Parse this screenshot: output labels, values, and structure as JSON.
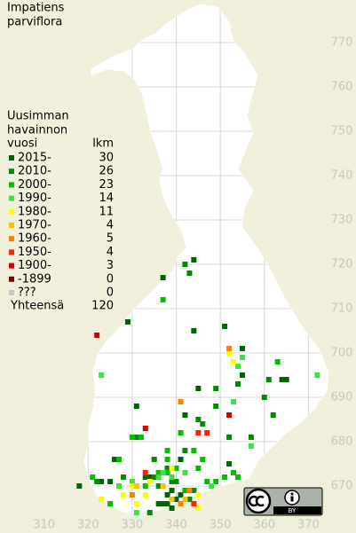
{
  "title": [
    "Impatiens",
    "parviflora"
  ],
  "legend": {
    "header": [
      "Uusimman",
      "havainnon",
      "vuosi"
    ],
    "count_header": "lkm",
    "rows": [
      {
        "label": "2015-",
        "count": 30,
        "color": "#006400",
        "points": [
          [
            337,
            666
          ],
          [
            338,
            666
          ],
          [
            339,
            667
          ],
          [
            340,
            667
          ],
          [
            336,
            666
          ],
          [
            341,
            666
          ],
          [
            325,
            671
          ],
          [
            344,
            721
          ],
          [
            337,
            717
          ],
          [
            329,
            707
          ],
          [
            351,
            706
          ],
          [
            365,
            694
          ],
          [
            364,
            694
          ],
          [
            355,
            701
          ],
          [
            345,
            692
          ],
          [
            344,
            705
          ],
          [
            338,
            668
          ],
          [
            339,
            665
          ],
          [
            334,
            672
          ],
          [
            352,
            675
          ],
          [
            323,
            671
          ],
          [
            342,
            686
          ],
          [
            341,
            676
          ],
          [
            318,
            670
          ],
          [
            326,
            676
          ],
          [
            339,
            669
          ],
          [
            333,
            672
          ],
          [
            341,
            668
          ],
          [
            355,
            695
          ],
          [
            331,
            688
          ]
        ]
      },
      {
        "label": "2010-",
        "count": 26,
        "color": "#008c00",
        "points": [
          [
            322,
            671
          ],
          [
            331,
            681
          ],
          [
            332,
            681
          ],
          [
            335,
            672
          ],
          [
            340,
            671
          ],
          [
            345,
            685
          ],
          [
            342,
            678
          ],
          [
            343,
            667
          ],
          [
            349,
            692
          ],
          [
            352,
            681
          ],
          [
            343,
            718
          ],
          [
            342,
            720
          ],
          [
            360,
            690
          ],
          [
            354,
            693
          ],
          [
            338,
            674
          ],
          [
            339,
            671
          ],
          [
            336,
            670
          ],
          [
            328,
            672
          ],
          [
            344,
            669
          ],
          [
            334,
            664
          ],
          [
            346,
            684
          ],
          [
            349,
            688
          ],
          [
            357,
            681
          ],
          [
            362,
            686
          ],
          [
            361,
            694
          ],
          [
            335,
            676
          ]
        ]
      },
      {
        "label": "2000-",
        "count": 23,
        "color": "#00c000",
        "points": [
          [
            327,
            676
          ],
          [
            332,
            681
          ],
          [
            330,
            681
          ],
          [
            338,
            678
          ],
          [
            338,
            676
          ],
          [
            347,
            671
          ],
          [
            349,
            671
          ],
          [
            336,
            673
          ],
          [
            346,
            676
          ],
          [
            341,
            682
          ],
          [
            353,
            673
          ],
          [
            351,
            672
          ],
          [
            321,
            672
          ],
          [
            333,
            670
          ],
          [
            325,
            666
          ],
          [
            337,
            712
          ],
          [
            363,
            698
          ],
          [
            345,
            674
          ],
          [
            354,
            672
          ],
          [
            344,
            678
          ],
          [
            338,
            673
          ],
          [
            340,
            674
          ],
          [
            342,
            669
          ]
        ]
      },
      {
        "label": "1990-",
        "count": 14,
        "color": "#40e040",
        "points": [
          [
            323,
            695
          ],
          [
            336,
            672
          ],
          [
            339,
            672
          ],
          [
            337,
            673
          ],
          [
            342,
            673
          ],
          [
            354,
            697
          ],
          [
            355,
            699
          ],
          [
            331,
            664
          ],
          [
            357,
            679
          ],
          [
            372,
            695
          ],
          [
            353,
            689
          ],
          [
            348,
            670
          ],
          [
            330,
            671
          ],
          [
            327,
            670
          ]
        ]
      },
      {
        "label": "1980-",
        "count": 11,
        "color": "#ffff00",
        "points": [
          [
            333,
            668
          ],
          [
            345,
            668
          ],
          [
            352,
            700
          ],
          [
            328,
            668
          ],
          [
            330,
            670
          ],
          [
            339,
            674
          ],
          [
            345,
            665
          ],
          [
            353,
            698
          ],
          [
            334,
            671
          ],
          [
            331,
            666
          ],
          [
            323,
            667
          ]
        ]
      },
      {
        "label": "1970-",
        "count": 4,
        "color": "#ffc000",
        "points": [
          [
            339,
            667
          ],
          [
            337,
            670
          ],
          [
            342,
            667
          ],
          [
            331,
            670
          ]
        ]
      },
      {
        "label": "1960-",
        "count": 5,
        "color": "#ff8000",
        "points": [
          [
            341,
            666
          ],
          [
            341,
            689
          ],
          [
            343,
            669
          ],
          [
            330,
            668
          ],
          [
            352,
            701
          ]
        ]
      },
      {
        "label": "1950-",
        "count": 4,
        "color": "#ff2000",
        "points": [
          [
            345,
            682
          ],
          [
            347,
            682
          ],
          [
            333,
            673
          ],
          [
            344,
            666
          ]
        ]
      },
      {
        "label": "1900-",
        "count": 3,
        "color": "#d00000",
        "points": [
          [
            333,
            683
          ],
          [
            352,
            686
          ],
          [
            322,
            704
          ]
        ]
      },
      {
        "label": "-1899",
        "count": 0,
        "color": "#800000",
        "points": []
      },
      {
        "label": "???",
        "count": 0,
        "color": "#c8c8c8",
        "points": []
      }
    ],
    "total_label": "Yhteensä",
    "total": 120
  },
  "map": {
    "xlim": [
      300,
      380.8
    ],
    "ylim": [
      659.4,
      779.6
    ],
    "xticks": [
      310,
      320,
      330,
      340,
      350,
      360,
      370
    ],
    "yticks": [
      670,
      680,
      690,
      700,
      710,
      720,
      730,
      740,
      750,
      760,
      770
    ]
  },
  "license_badge": "BY"
}
